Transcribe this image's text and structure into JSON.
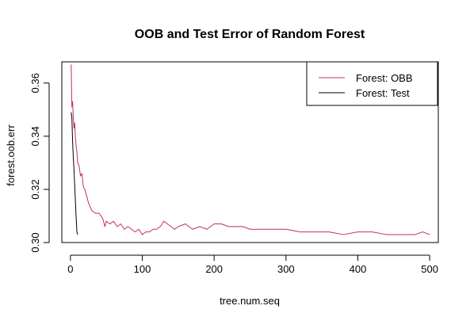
{
  "chart_data": {
    "type": "line",
    "title": "OOB and Test Error of Random Forest",
    "xlabel": "tree.num.seq",
    "ylabel": "forest.oob.err",
    "xlim": [
      -12,
      512
    ],
    "ylim": [
      0.3,
      0.368
    ],
    "xticks": [
      0,
      100,
      200,
      300,
      400,
      500
    ],
    "yticks": [
      0.3,
      0.32,
      0.34,
      0.36
    ],
    "ytick_labels": [
      "0.30",
      "0.32",
      "0.34",
      "0.36"
    ],
    "grid": false,
    "legend_position": "top-right",
    "colors": {
      "oob": "#c22f57",
      "test": "#000000"
    },
    "series": [
      {
        "name": "Forest: OBB",
        "color": "#c22f57",
        "x": [
          1,
          2,
          3,
          4,
          5,
          6,
          7,
          8,
          9,
          10,
          12,
          14,
          16,
          18,
          20,
          22,
          25,
          28,
          30,
          35,
          40,
          45,
          48,
          50,
          55,
          60,
          65,
          70,
          75,
          80,
          85,
          90,
          95,
          100,
          105,
          110,
          115,
          120,
          125,
          130,
          135,
          140,
          145,
          150,
          160,
          170,
          180,
          190,
          200,
          210,
          220,
          230,
          240,
          250,
          260,
          270,
          280,
          290,
          300,
          320,
          340,
          360,
          380,
          400,
          420,
          440,
          460,
          480,
          490,
          500
        ],
        "y": [
          0.367,
          0.351,
          0.353,
          0.347,
          0.343,
          0.345,
          0.339,
          0.336,
          0.334,
          0.33,
          0.329,
          0.325,
          0.326,
          0.321,
          0.32,
          0.318,
          0.315,
          0.313,
          0.312,
          0.311,
          0.311,
          0.309,
          0.306,
          0.308,
          0.307,
          0.308,
          0.306,
          0.307,
          0.305,
          0.306,
          0.305,
          0.304,
          0.305,
          0.303,
          0.304,
          0.304,
          0.305,
          0.305,
          0.306,
          0.308,
          0.307,
          0.306,
          0.305,
          0.306,
          0.307,
          0.305,
          0.306,
          0.305,
          0.307,
          0.307,
          0.306,
          0.306,
          0.306,
          0.305,
          0.305,
          0.305,
          0.305,
          0.305,
          0.305,
          0.304,
          0.304,
          0.304,
          0.303,
          0.304,
          0.304,
          0.303,
          0.303,
          0.303,
          0.304,
          0.303
        ]
      },
      {
        "name": "Forest: Test",
        "color": "#000000",
        "x": [
          1,
          2,
          3,
          4,
          5,
          6,
          7,
          8,
          9,
          10
        ],
        "y": [
          0.349,
          0.347,
          0.338,
          0.332,
          0.327,
          0.321,
          0.315,
          0.309,
          0.304,
          0.303
        ]
      }
    ]
  }
}
